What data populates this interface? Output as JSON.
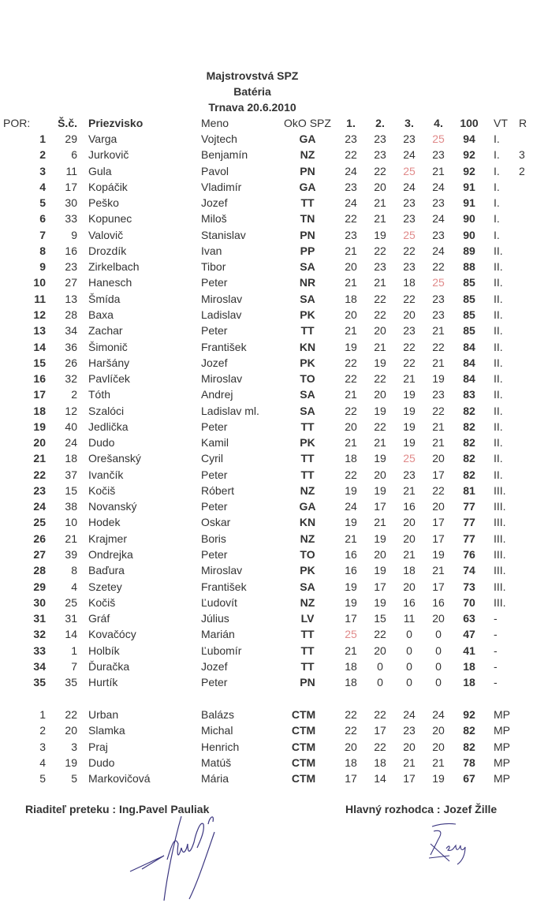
{
  "title": {
    "line1": "Majstrovstvá SPZ",
    "line2": "Batéria",
    "line3": "Trnava 20.6.2010"
  },
  "header": {
    "por": "POR:",
    "sc": "Š.č.",
    "surname": "Priezvisko",
    "name": "Meno",
    "club": "OkO SPZ",
    "s": [
      "1.",
      "2.",
      "3.",
      "4."
    ],
    "total": "100",
    "vt": "VT",
    "r": "R"
  },
  "highlight_color": "#e08a8a",
  "results": [
    {
      "por": "1",
      "sc": "29",
      "sur": "Varga",
      "meno": "Vojtech",
      "oko": "GA",
      "s": [
        23,
        23,
        23,
        25
      ],
      "tot": "94",
      "vt": "I.",
      "r": ""
    },
    {
      "por": "2",
      "sc": "6",
      "sur": "Jurkovič",
      "meno": "Benjamín",
      "oko": "NZ",
      "s": [
        22,
        23,
        24,
        23
      ],
      "tot": "92",
      "vt": "I.",
      "r": "3"
    },
    {
      "por": "3",
      "sc": "11",
      "sur": "Gula",
      "meno": "Pavol",
      "oko": "PN",
      "s": [
        24,
        22,
        25,
        21
      ],
      "tot": "92",
      "vt": "I.",
      "r": "2"
    },
    {
      "por": "4",
      "sc": "17",
      "sur": "Kopáčik",
      "meno": "Vladimír",
      "oko": "GA",
      "s": [
        23,
        20,
        24,
        24
      ],
      "tot": "91",
      "vt": "I.",
      "r": ""
    },
    {
      "por": "5",
      "sc": "30",
      "sur": "Peško",
      "meno": "Jozef",
      "oko": "TT",
      "s": [
        24,
        21,
        23,
        23
      ],
      "tot": "91",
      "vt": "I.",
      "r": ""
    },
    {
      "por": "6",
      "sc": "33",
      "sur": "Kopunec",
      "meno": "Miloš",
      "oko": "TN",
      "s": [
        22,
        21,
        23,
        24
      ],
      "tot": "90",
      "vt": "I.",
      "r": ""
    },
    {
      "por": "7",
      "sc": "9",
      "sur": "Valovič",
      "meno": "Stanislav",
      "oko": "PN",
      "s": [
        23,
        19,
        25,
        23
      ],
      "tot": "90",
      "vt": "I.",
      "r": ""
    },
    {
      "por": "8",
      "sc": "16",
      "sur": "Drozdík",
      "meno": "Ivan",
      "oko": "PP",
      "s": [
        21,
        22,
        22,
        24
      ],
      "tot": "89",
      "vt": "II.",
      "r": ""
    },
    {
      "por": "9",
      "sc": "23",
      "sur": "Zirkelbach",
      "meno": "Tibor",
      "oko": "SA",
      "s": [
        20,
        23,
        23,
        22
      ],
      "tot": "88",
      "vt": "II.",
      "r": ""
    },
    {
      "por": "10",
      "sc": "27",
      "sur": "Hanesch",
      "meno": "Peter",
      "oko": "NR",
      "s": [
        21,
        21,
        18,
        25
      ],
      "tot": "85",
      "vt": "II.",
      "r": ""
    },
    {
      "por": "11",
      "sc": "13",
      "sur": "Šmída",
      "meno": "Miroslav",
      "oko": "SA",
      "s": [
        18,
        22,
        22,
        23
      ],
      "tot": "85",
      "vt": "II.",
      "r": ""
    },
    {
      "por": "12",
      "sc": "28",
      "sur": "Baxa",
      "meno": "Ladislav",
      "oko": "PK",
      "s": [
        20,
        22,
        20,
        23
      ],
      "tot": "85",
      "vt": "II.",
      "r": ""
    },
    {
      "por": "13",
      "sc": "34",
      "sur": "Zachar",
      "meno": "Peter",
      "oko": "TT",
      "s": [
        21,
        20,
        23,
        21
      ],
      "tot": "85",
      "vt": "II.",
      "r": ""
    },
    {
      "por": "14",
      "sc": "36",
      "sur": "Šimonič",
      "meno": "František",
      "oko": "KN",
      "s": [
        19,
        21,
        22,
        22
      ],
      "tot": "84",
      "vt": "II.",
      "r": ""
    },
    {
      "por": "15",
      "sc": "26",
      "sur": "Haršány",
      "meno": "Jozef",
      "oko": "PK",
      "s": [
        22,
        19,
        22,
        21
      ],
      "tot": "84",
      "vt": "II.",
      "r": ""
    },
    {
      "por": "16",
      "sc": "32",
      "sur": "Pavlíček",
      "meno": "Miroslav",
      "oko": "TO",
      "s": [
        22,
        22,
        21,
        19
      ],
      "tot": "84",
      "vt": "II.",
      "r": ""
    },
    {
      "por": "17",
      "sc": "2",
      "sur": "Tóth",
      "meno": "Andrej",
      "oko": "SA",
      "s": [
        21,
        20,
        19,
        23
      ],
      "tot": "83",
      "vt": "II.",
      "r": ""
    },
    {
      "por": "18",
      "sc": "12",
      "sur": "Szalóci",
      "meno": "Ladislav ml.",
      "oko": "SA",
      "s": [
        22,
        19,
        19,
        22
      ],
      "tot": "82",
      "vt": "II.",
      "r": ""
    },
    {
      "por": "19",
      "sc": "40",
      "sur": "Jedlička",
      "meno": "Peter",
      "oko": "TT",
      "s": [
        20,
        22,
        19,
        21
      ],
      "tot": "82",
      "vt": "II.",
      "r": ""
    },
    {
      "por": "20",
      "sc": "24",
      "sur": "Dudo",
      "meno": "Kamil",
      "oko": "PK",
      "s": [
        21,
        21,
        19,
        21
      ],
      "tot": "82",
      "vt": "II.",
      "r": ""
    },
    {
      "por": "21",
      "sc": "18",
      "sur": "Orešanský",
      "meno": "Cyril",
      "oko": "TT",
      "s": [
        18,
        19,
        25,
        20
      ],
      "tot": "82",
      "vt": "II.",
      "r": ""
    },
    {
      "por": "22",
      "sc": "37",
      "sur": "Ivančík",
      "meno": "Peter",
      "oko": "TT",
      "s": [
        22,
        20,
        23,
        17
      ],
      "tot": "82",
      "vt": "II.",
      "r": ""
    },
    {
      "por": "23",
      "sc": "15",
      "sur": "Kočiš",
      "meno": "Róbert",
      "oko": "NZ",
      "s": [
        19,
        19,
        21,
        22
      ],
      "tot": "81",
      "vt": "III.",
      "r": ""
    },
    {
      "por": "24",
      "sc": "38",
      "sur": "Novanský",
      "meno": "Peter",
      "oko": "GA",
      "s": [
        24,
        17,
        16,
        20
      ],
      "tot": "77",
      "vt": "III.",
      "r": ""
    },
    {
      "por": "25",
      "sc": "10",
      "sur": "Hodek",
      "meno": "Oskar",
      "oko": "KN",
      "s": [
        19,
        21,
        20,
        17
      ],
      "tot": "77",
      "vt": "III.",
      "r": ""
    },
    {
      "por": "26",
      "sc": "21",
      "sur": "Krajmer",
      "meno": "Boris",
      "oko": "NZ",
      "s": [
        21,
        19,
        20,
        17
      ],
      "tot": "77",
      "vt": "III.",
      "r": ""
    },
    {
      "por": "27",
      "sc": "39",
      "sur": "Ondrejka",
      "meno": "Peter",
      "oko": "TO",
      "s": [
        16,
        20,
        21,
        19
      ],
      "tot": "76",
      "vt": "III.",
      "r": ""
    },
    {
      "por": "28",
      "sc": "8",
      "sur": "Baďura",
      "meno": "Miroslav",
      "oko": "PK",
      "s": [
        16,
        19,
        18,
        21
      ],
      "tot": "74",
      "vt": "III.",
      "r": ""
    },
    {
      "por": "29",
      "sc": "4",
      "sur": "Szetey",
      "meno": "František",
      "oko": "SA",
      "s": [
        19,
        17,
        20,
        17
      ],
      "tot": "73",
      "vt": "III.",
      "r": ""
    },
    {
      "por": "30",
      "sc": "25",
      "sur": "Kočiš",
      "meno": "Ľudovít",
      "oko": "NZ",
      "s": [
        19,
        19,
        16,
        16
      ],
      "tot": "70",
      "vt": "III.",
      "r": ""
    },
    {
      "por": "31",
      "sc": "31",
      "sur": "Gráf",
      "meno": "Július",
      "oko": "LV",
      "s": [
        17,
        15,
        11,
        20
      ],
      "tot": "63",
      "vt": "-",
      "r": ""
    },
    {
      "por": "32",
      "sc": "14",
      "sur": "Kovačócy",
      "meno": "Marián",
      "oko": "TT",
      "s": [
        25,
        22,
        0,
        0
      ],
      "tot": "47",
      "vt": "-",
      "r": ""
    },
    {
      "por": "33",
      "sc": "1",
      "sur": "Holbík",
      "meno": "Ľubomír",
      "oko": "TT",
      "s": [
        21,
        20,
        0,
        0
      ],
      "tot": "41",
      "vt": "-",
      "r": ""
    },
    {
      "por": "34",
      "sc": "7",
      "sur": "Ďuračka",
      "meno": "Jozef",
      "oko": "TT",
      "s": [
        18,
        0,
        0,
        0
      ],
      "tot": "18",
      "vt": "-",
      "r": ""
    },
    {
      "por": "35",
      "sc": "35",
      "sur": "Hurtík",
      "meno": "Peter",
      "oko": "PN",
      "s": [
        18,
        0,
        0,
        0
      ],
      "tot": "18",
      "vt": "-",
      "r": ""
    }
  ],
  "guests": [
    {
      "por": "1",
      "sc": "22",
      "sur": "Urban",
      "meno": "Balázs",
      "oko": "CTM",
      "s": [
        22,
        22,
        24,
        24
      ],
      "tot": "92",
      "vt": "MP",
      "r": ""
    },
    {
      "por": "2",
      "sc": "20",
      "sur": "Slamka",
      "meno": "Michal",
      "oko": "CTM",
      "s": [
        22,
        17,
        23,
        20
      ],
      "tot": "82",
      "vt": "MP",
      "r": ""
    },
    {
      "por": "3",
      "sc": "3",
      "sur": "Praj",
      "meno": "Henrich",
      "oko": "CTM",
      "s": [
        20,
        22,
        20,
        20
      ],
      "tot": "82",
      "vt": "MP",
      "r": ""
    },
    {
      "por": "4",
      "sc": "19",
      "sur": "Dudo",
      "meno": "Matúš",
      "oko": "CTM",
      "s": [
        18,
        18,
        21,
        21
      ],
      "tot": "78",
      "vt": "MP",
      "r": ""
    },
    {
      "por": "5",
      "sc": "5",
      "sur": "Markovičová",
      "meno": "Mária",
      "oko": "CTM",
      "s": [
        17,
        14,
        17,
        19
      ],
      "tot": "67",
      "vt": "MP",
      "r": ""
    }
  ],
  "footer": {
    "director": "Riaditeľ preteku : Ing.Pavel Pauliak",
    "referee": "Hlavný rozhodca : Jozef Žille",
    "director_signature": "Pauliak",
    "referee_signature": "Žille"
  }
}
